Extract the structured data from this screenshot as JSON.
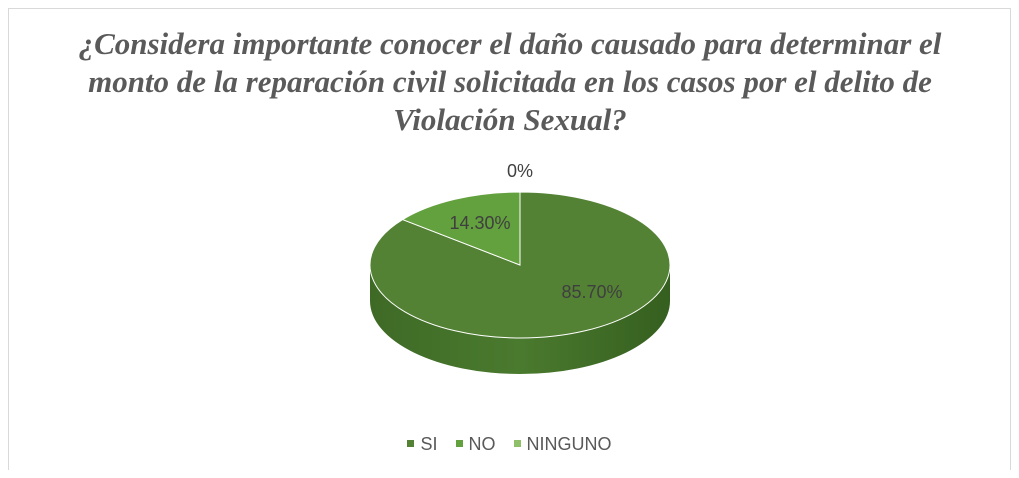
{
  "chart_data": {
    "type": "pie",
    "title": "¿Considera importante conocer el daño causado para determinar el monto de la reparación civil solicitada en los casos por el delito de Violación Sexual?",
    "categories": [
      "SI",
      "NO",
      "NINGUNO"
    ],
    "values": [
      85.7,
      14.3,
      0
    ],
    "data_labels": [
      "85.70%",
      "14.30%",
      "0%"
    ],
    "legend": "bottom",
    "colors": [
      "#548235",
      "#63a03e",
      "#8fc069"
    ]
  }
}
